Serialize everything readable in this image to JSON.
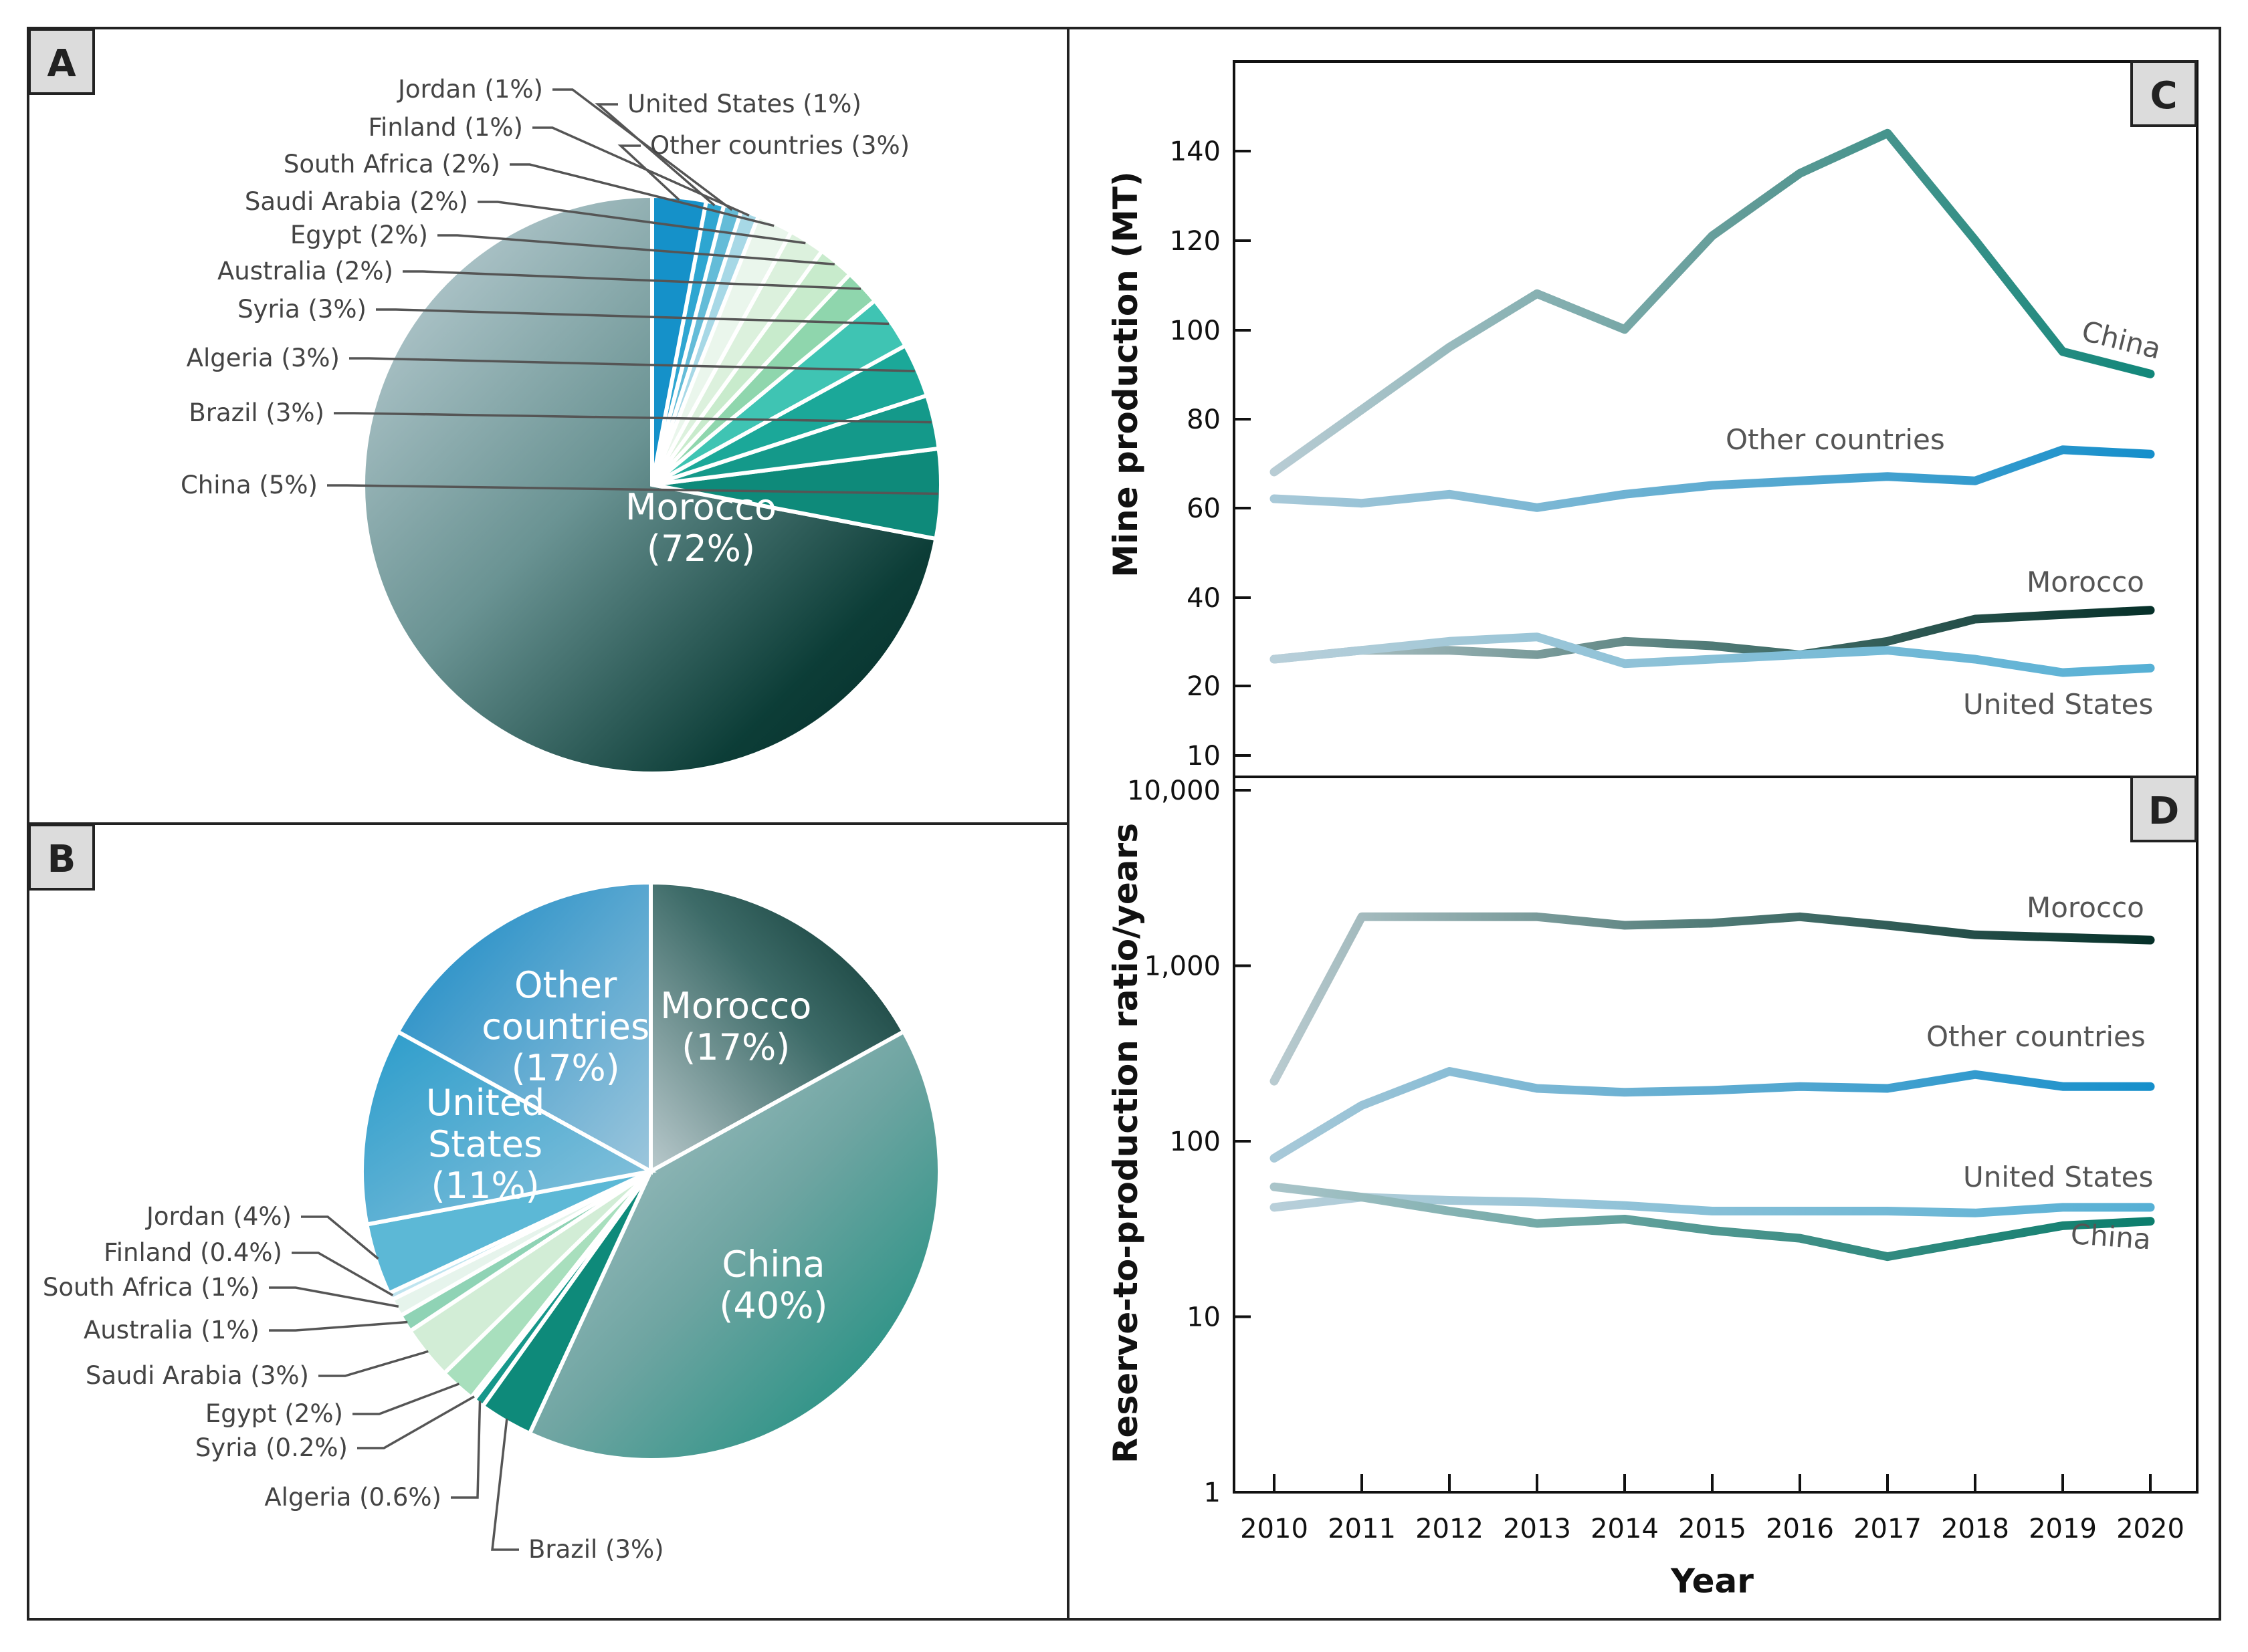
{
  "panels": {
    "a": "A",
    "b": "B",
    "c": "C",
    "d": "D"
  },
  "colors": {
    "Morocco": [
      "#b8cdd4",
      "#5a8a8a",
      "#05332e"
    ],
    "China": "#138c7c",
    "Other countries": "#1a8ec9",
    "United States": "#5ab0d2"
  },
  "chart_data": [
    {
      "id": "A",
      "type": "pie",
      "slices": [
        {
          "label": "Morocco (72%)",
          "short": "Morocco",
          "value": 72,
          "inside": true,
          "line1": "Morocco",
          "line2": "(72%)",
          "color": "grad"
        },
        {
          "label": "China (5%)",
          "value": 5,
          "color": "#0e8a7a"
        },
        {
          "label": "Brazil (3%)",
          "value": 3,
          "color": "#14998a"
        },
        {
          "label": "Algeria (3%)",
          "value": 3,
          "color": "#1ba899"
        },
        {
          "label": "Syria (3%)",
          "value": 3,
          "color": "#3fc4b3"
        },
        {
          "label": "Australia (2%)",
          "value": 2,
          "color": "#8fd6ad"
        },
        {
          "label": "Egypt (2%)",
          "value": 2,
          "color": "#c8ebcc"
        },
        {
          "label": "Saudi Arabia (2%)",
          "value": 2,
          "color": "#dcf1dd"
        },
        {
          "label": "South Africa (2%)",
          "value": 2,
          "color": "#eaf6ec"
        },
        {
          "label": "Finland (1%)",
          "value": 1,
          "color": "#a7d8e6"
        },
        {
          "label": "Jordan (1%)",
          "value": 1,
          "color": "#64bcd8"
        },
        {
          "label": "United States (1%)",
          "value": 1,
          "color": "#2ea6d1"
        },
        {
          "label": "Other countries (3%)",
          "value": 3,
          "color": "#1591c9"
        }
      ]
    },
    {
      "id": "B",
      "type": "pie",
      "slices": [
        {
          "label": "Morocco (17%)",
          "value": 17,
          "inside": true,
          "line1": "Morocco",
          "line2": "(17%)",
          "color": "gradMor"
        },
        {
          "label": "China (40%)",
          "value": 40,
          "inside": true,
          "line1": "China",
          "line2": "(40%)",
          "color": "gradChina"
        },
        {
          "label": "Brazil (3%)",
          "value": 3,
          "color": "#0e8a7a"
        },
        {
          "label": "Algeria (0.6%)",
          "value": 0.6,
          "color": "#16978a"
        },
        {
          "label": "Syria (0.2%)",
          "value": 0.2,
          "color": "#2aaf9e"
        },
        {
          "label": "Egypt (2%)",
          "value": 2,
          "color": "#a8dfbd"
        },
        {
          "label": "Saudi Arabia (3%)",
          "value": 3,
          "color": "#d2edd6"
        },
        {
          "label": "Australia (1%)",
          "value": 1,
          "color": "#8fd3b5"
        },
        {
          "label": "South Africa (1%)",
          "value": 1,
          "color": "#e6f4ec"
        },
        {
          "label": "Finland (0.4%)",
          "value": 0.4,
          "color": "#bfe4ef"
        },
        {
          "label": "Jordan (4%)",
          "value": 4,
          "color": "#5cb8d6"
        },
        {
          "label": "United States (11%)",
          "value": 11,
          "inside": true,
          "line1": "United",
          "line2": "States",
          "line3": "(11%)",
          "color": "gradUS"
        },
        {
          "label": "Other countries (17%)",
          "value": 17,
          "inside": true,
          "line1": "Other",
          "line2": "countries",
          "line3": "(17%)",
          "color": "gradOther"
        }
      ]
    },
    {
      "id": "C",
      "type": "line",
      "x": [
        2010,
        2011,
        2012,
        2013,
        2014,
        2015,
        2016,
        2017,
        2018,
        2019,
        2020
      ],
      "ylabel": "Mine production (MT)",
      "xlabel": "Year",
      "ylim": [
        10,
        150
      ],
      "yticks": [
        10,
        20,
        40,
        60,
        80,
        100,
        120,
        140
      ],
      "series": [
        {
          "name": "China",
          "values": [
            68,
            82,
            96,
            108,
            100,
            121,
            135,
            144,
            120,
            95,
            90
          ]
        },
        {
          "name": "Other countries",
          "values": [
            62,
            61,
            63,
            60,
            63,
            65,
            66,
            67,
            66,
            73,
            72
          ]
        },
        {
          "name": "Morocco",
          "values": [
            26,
            28,
            28,
            27,
            30,
            29,
            27,
            30,
            35,
            36,
            37
          ]
        },
        {
          "name": "United States",
          "values": [
            26,
            28,
            30,
            31,
            25,
            26,
            27,
            28,
            26,
            23,
            24
          ]
        }
      ]
    },
    {
      "id": "D",
      "type": "line",
      "scale": "log",
      "x": [
        2010,
        2011,
        2012,
        2013,
        2014,
        2015,
        2016,
        2017,
        2018,
        2019,
        2020
      ],
      "ylabel": "Reserve-to-production ratio/years",
      "xlabel": "Year",
      "ylim": [
        1,
        10000
      ],
      "yticks": [
        1,
        10,
        100,
        1000,
        10000
      ],
      "ytick_labels": [
        "1",
        "10",
        "100",
        "1,000",
        "10,000"
      ],
      "series": [
        {
          "name": "Morocco",
          "values": [
            220,
            1900,
            1900,
            1900,
            1700,
            1750,
            1900,
            1700,
            1500,
            1450,
            1400
          ]
        },
        {
          "name": "Other countries",
          "values": [
            80,
            160,
            250,
            200,
            190,
            195,
            205,
            200,
            240,
            205,
            205
          ]
        },
        {
          "name": "United States",
          "values": [
            42,
            48,
            46,
            45,
            43,
            40,
            40,
            40,
            39,
            42,
            42
          ]
        },
        {
          "name": "China",
          "values": [
            55,
            48,
            40,
            34,
            36,
            31,
            28,
            22,
            27,
            33,
            35
          ]
        }
      ]
    }
  ]
}
